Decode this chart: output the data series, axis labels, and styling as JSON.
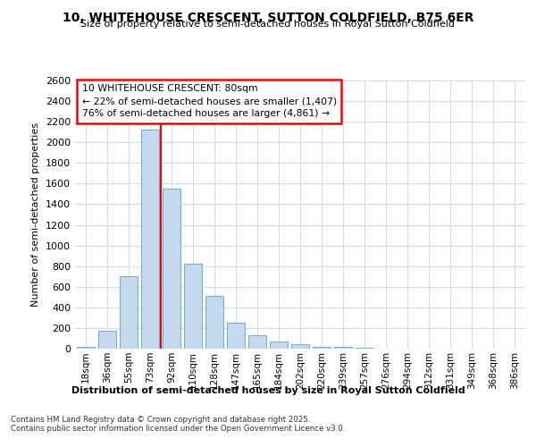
{
  "title1": "10, WHITEHOUSE CRESCENT, SUTTON COLDFIELD, B75 6ER",
  "title2": "Size of property relative to semi-detached houses in Royal Sutton Coldfield",
  "xlabel": "Distribution of semi-detached houses by size in Royal Sutton Coldfield",
  "ylabel": "Number of semi-detached properties",
  "footnote": "Contains HM Land Registry data © Crown copyright and database right 2025.\nContains public sector information licensed under the Open Government Licence v3.0.",
  "bar_labels": [
    "18sqm",
    "36sqm",
    "55sqm",
    "73sqm",
    "92sqm",
    "110sqm",
    "128sqm",
    "147sqm",
    "165sqm",
    "184sqm",
    "202sqm",
    "220sqm",
    "239sqm",
    "257sqm",
    "276sqm",
    "294sqm",
    "312sqm",
    "331sqm",
    "349sqm",
    "368sqm",
    "386sqm"
  ],
  "bar_values": [
    15,
    170,
    700,
    2120,
    1550,
    820,
    510,
    255,
    130,
    70,
    45,
    20,
    15,
    5,
    2,
    0,
    0,
    2,
    0,
    0,
    0
  ],
  "bar_color": "#c5d9ef",
  "bar_edge_color": "#7bafd4",
  "vline_color": "red",
  "vline_x_index": 3.5,
  "annotation_text": "10 WHITEHOUSE CRESCENT: 80sqm\n← 22% of semi-detached houses are smaller (1,407)\n76% of semi-detached houses are larger (4,861) →",
  "annotation_box_color": "white",
  "annotation_box_edge_color": "red",
  "ylim": [
    0,
    2600
  ],
  "background_color": "#ffffff",
  "plot_bg_color": "#ffffff",
  "grid_color": "#d0dce8"
}
